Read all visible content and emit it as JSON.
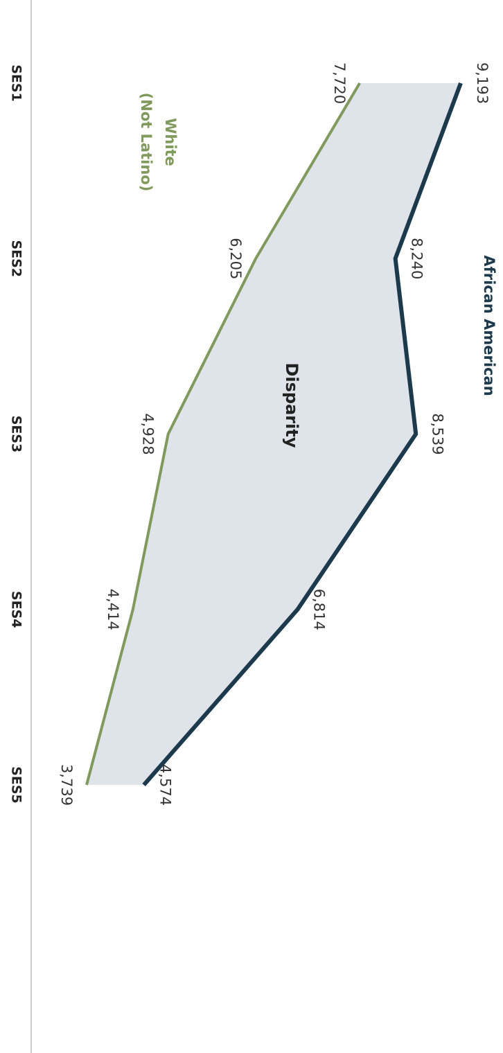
{
  "chart_data": {
    "type": "line",
    "annotation": "Disparity",
    "categories": [
      "SES1",
      "SES2",
      "SES3",
      "SES4",
      "SES5"
    ],
    "fill_color": "#dfe3ea",
    "series": [
      {
        "name": "African American",
        "color": "#1d3a4d",
        "values": [
          9193,
          8240,
          8539,
          6814,
          4574
        ],
        "value_labels": [
          "9,193",
          "8,240",
          "8,539",
          "6,814",
          "4,574"
        ]
      },
      {
        "name": "White (Not Latino)",
        "color": "#7f9a5c",
        "values": [
          7720,
          6205,
          4928,
          4414,
          3739
        ],
        "value_labels": [
          "7,720",
          "6,205",
          "4,928",
          "4,414",
          "3,739"
        ]
      }
    ]
  }
}
